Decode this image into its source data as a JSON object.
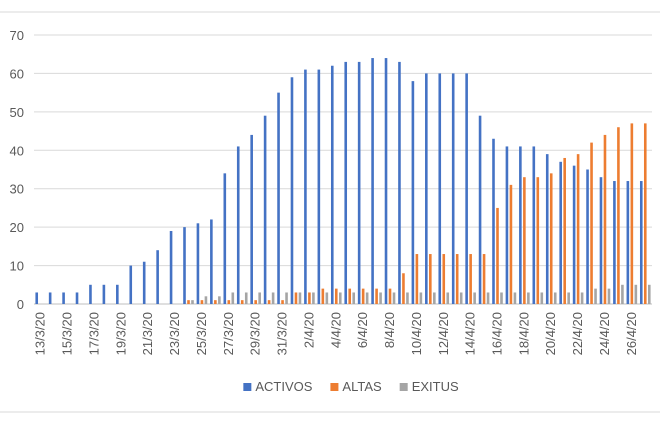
{
  "chart_data": {
    "type": "bar",
    "title": "",
    "xlabel": "",
    "ylabel": "",
    "ylim": [
      0,
      70
    ],
    "yticks": [
      0,
      10,
      20,
      30,
      40,
      50,
      60,
      70
    ],
    "grid": "horizontal",
    "legend_position": "bottom",
    "categories": [
      "13/3/20",
      "14/3/20",
      "15/3/20",
      "16/3/20",
      "17/3/20",
      "18/3/20",
      "19/3/20",
      "20/3/20",
      "21/3/20",
      "22/3/20",
      "23/3/20",
      "24/3/20",
      "25/3/20",
      "26/3/20",
      "27/3/20",
      "28/3/20",
      "29/3/20",
      "30/3/20",
      "31/3/20",
      "1/4/20",
      "2/4/20",
      "3/4/20",
      "4/4/20",
      "5/4/20",
      "6/4/20",
      "7/4/20",
      "8/4/20",
      "9/4/20",
      "10/4/20",
      "11/4/20",
      "12/4/20",
      "13/4/20",
      "14/4/20",
      "15/4/20",
      "16/4/20",
      "17/4/20",
      "18/4/20",
      "19/4/20",
      "20/4/20",
      "21/4/20",
      "22/4/20",
      "23/4/20",
      "24/4/20",
      "25/4/20",
      "26/4/20",
      "27/4/20"
    ],
    "tick_labels": [
      "13/3/20",
      "15/3/20",
      "17/3/20",
      "19/3/20",
      "21/3/20",
      "23/3/20",
      "25/3/20",
      "27/3/20",
      "29/3/20",
      "31/3/20",
      "2/4/20",
      "4/4/20",
      "6/4/20",
      "8/4/20",
      "10/4/20",
      "12/4/20",
      "14/4/20",
      "16/4/20",
      "18/4/20",
      "20/4/20",
      "22/4/20",
      "24/4/20",
      "26/4/20"
    ],
    "series": [
      {
        "name": "ACTIVOS",
        "color": "#4472c4",
        "values": [
          3,
          3,
          3,
          3,
          5,
          5,
          5,
          10,
          11,
          14,
          19,
          20,
          21,
          22,
          34,
          41,
          44,
          49,
          55,
          59,
          61,
          61,
          62,
          63,
          63,
          64,
          64,
          63,
          58,
          60,
          60,
          60,
          60,
          49,
          43,
          41,
          41,
          41,
          39,
          37,
          36,
          35,
          33,
          32,
          32,
          32
        ]
      },
      {
        "name": "ALTAS",
        "color": "#ed7d31",
        "values": [
          0,
          0,
          0,
          0,
          0,
          0,
          0,
          0,
          0,
          0,
          0,
          1,
          1,
          1,
          1,
          1,
          1,
          1,
          1,
          3,
          3,
          4,
          4,
          4,
          4,
          4,
          4,
          8,
          13,
          13,
          13,
          13,
          13,
          13,
          25,
          31,
          33,
          33,
          34,
          38,
          39,
          42,
          44,
          46,
          47,
          47
        ]
      },
      {
        "name": "EXITUS",
        "color": "#a5a5a5",
        "values": [
          0,
          0,
          0,
          0,
          0,
          0,
          0,
          0,
          0,
          0,
          0,
          1,
          2,
          2,
          3,
          3,
          3,
          3,
          3,
          3,
          3,
          3,
          3,
          3,
          3,
          3,
          3,
          3,
          3,
          3,
          3,
          3,
          3,
          3,
          3,
          3,
          3,
          3,
          3,
          3,
          3,
          4,
          4,
          5,
          5,
          5
        ]
      }
    ]
  }
}
